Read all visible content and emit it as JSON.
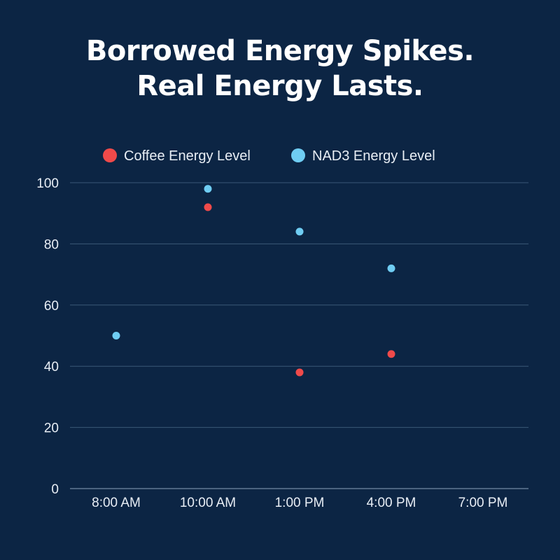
{
  "title_lines": [
    "Borrowed Energy Spikes.",
    "Real Energy Lasts."
  ],
  "colors": {
    "background": "#0c2544",
    "grid": "#3a5877",
    "axis": "#8da3bb",
    "text": "#e8eef5",
    "coffee": "#f04a4a",
    "nad3": "#6fcdf3"
  },
  "chart_data": {
    "type": "scatter",
    "title": "Borrowed Energy Spikes. Real Energy Lasts.",
    "categories": [
      "8:00 AM",
      "10:00 AM",
      "1:00 PM",
      "4:00 PM",
      "7:00 PM"
    ],
    "series": [
      {
        "name": "Coffee Energy Level",
        "color": "#f04a4a",
        "values": [
          null,
          92,
          38,
          44,
          null
        ]
      },
      {
        "name": "NAD3 Energy Level",
        "color": "#6fcdf3",
        "values": [
          50,
          98,
          84,
          72,
          null
        ]
      }
    ],
    "yticks": [
      0,
      20,
      40,
      60,
      80,
      100
    ],
    "ylim": [
      0,
      100
    ],
    "grid": true,
    "legend_position": "top-center"
  }
}
